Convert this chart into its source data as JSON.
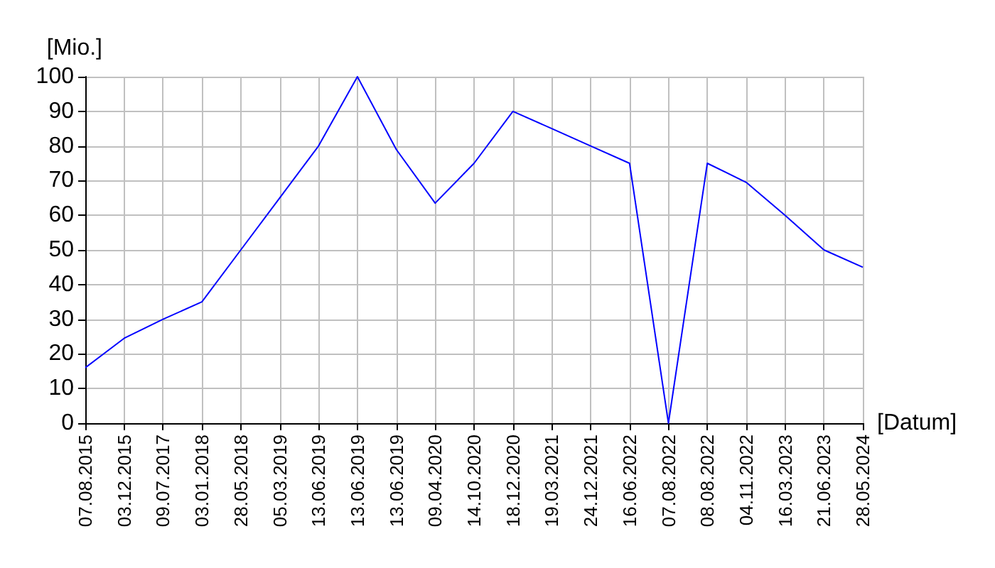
{
  "chart_data": {
    "type": "line",
    "xlabel": "[Datum]",
    "ylabel": "[Mio.]",
    "categories": [
      "07.08.2015",
      "03.12.2015",
      "09.07.2017",
      "03.01.2018",
      "28.05.2018",
      "05.03.2019",
      "13.06.2019",
      "13.06.2019",
      "13.06.2019",
      "09.04.2020",
      "14.10.2020",
      "18.12.2020",
      "19.03.2021",
      "24.12.2021",
      "16.06.2022",
      "07.08.2022",
      "08.08.2022",
      "04.11.2022",
      "16.03.2023",
      "21.06.2023",
      "28.05.2024"
    ],
    "series": [
      {
        "color": "#0000ff",
        "values": [
          16,
          24.5,
          30,
          35,
          50,
          65,
          80,
          100,
          79,
          63.5,
          75,
          90,
          85,
          80,
          75,
          0,
          75,
          69.5,
          60,
          50,
          45
        ]
      }
    ],
    "ylim": [
      0,
      100
    ],
    "yticks": [
      0,
      10,
      20,
      30,
      40,
      50,
      60,
      70,
      80,
      90,
      100
    ],
    "grid": true,
    "marker": "none",
    "line_style": "solid"
  }
}
